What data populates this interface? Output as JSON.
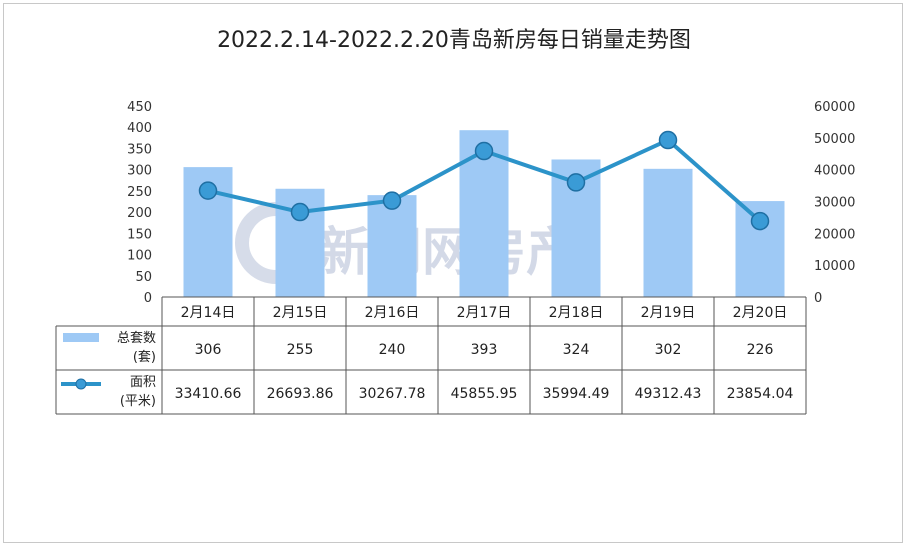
{
  "chart_data": {
    "type": "bar",
    "title": "2022.2.14-2022.2.20青岛新房每日销量走势图",
    "categories": [
      "2月14日",
      "2月15日",
      "2月16日",
      "2月17日",
      "2月18日",
      "2月19日",
      "2月20日"
    ],
    "series": [
      {
        "name": "总套数(套)",
        "type": "bar",
        "axis": "left",
        "values": [
          306,
          255,
          240,
          393,
          324,
          302,
          226
        ]
      },
      {
        "name": "面积(平米)",
        "type": "line",
        "axis": "right",
        "values": [
          33410.66,
          26693.86,
          30267.78,
          45855.95,
          35994.49,
          49312.43,
          23854.04
        ]
      }
    ],
    "value_labels": {
      "bar": [
        "306",
        "255",
        "240",
        "393",
        "324",
        "302",
        "226"
      ],
      "line": [
        "33410.66",
        "26693.86",
        "30267.78",
        "45855.95",
        "35994.49",
        "49312.43",
        "23854.04"
      ]
    },
    "legend": {
      "bar_line1": "总套数",
      "bar_line2": "(套)",
      "line_line1": "面积",
      "line_line2": "(平米)"
    },
    "ylim_left": [
      0,
      450
    ],
    "ylim_right": [
      0,
      60000
    ],
    "yticks_left": [
      0,
      50,
      100,
      150,
      200,
      250,
      300,
      350,
      400,
      450
    ],
    "yticks_right": [
      0,
      10000,
      20000,
      30000,
      40000,
      50000,
      60000
    ],
    "colors": {
      "bar": "#9ec9f5",
      "line": "#2c93c9",
      "marker": "#3a9bd6",
      "grid": "#bfbfbf",
      "table_border": "#555555"
    },
    "watermark": "新闻网房产",
    "grid": false,
    "legend_placement": "data-table"
  }
}
